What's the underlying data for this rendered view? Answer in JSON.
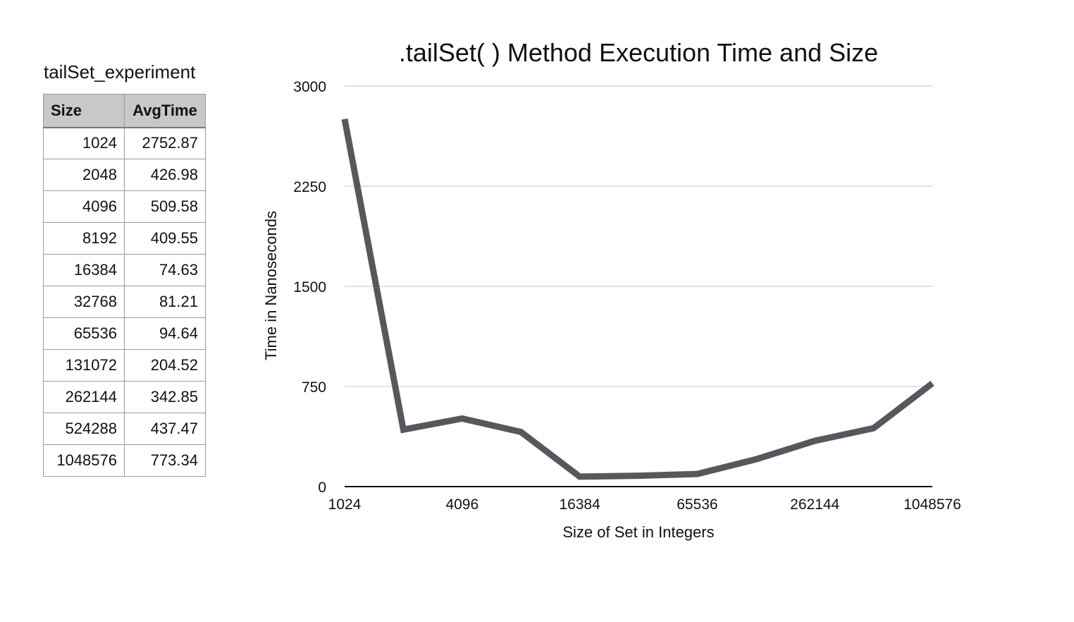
{
  "table": {
    "title": "tailSet_experiment",
    "headers": [
      "Size",
      "AvgTime"
    ],
    "rows": [
      [
        "1024",
        "2752.87"
      ],
      [
        "2048",
        "426.98"
      ],
      [
        "4096",
        "509.58"
      ],
      [
        "8192",
        "409.55"
      ],
      [
        "16384",
        "74.63"
      ],
      [
        "32768",
        "81.21"
      ],
      [
        "65536",
        "94.64"
      ],
      [
        "131072",
        "204.52"
      ],
      [
        "262144",
        "342.85"
      ],
      [
        "524288",
        "437.47"
      ],
      [
        "1048576",
        "773.34"
      ]
    ]
  },
  "chart_data": {
    "type": "line",
    "title": ".tailSet( ) Method Execution Time and Size",
    "xlabel": "Size of Set in Integers",
    "ylabel": "Time in Nanoseconds",
    "x": [
      1024,
      2048,
      4096,
      8192,
      16384,
      32768,
      65536,
      131072,
      262144,
      524288,
      1048576
    ],
    "x_scale": "log2",
    "x_tick_labels": [
      "1024",
      "4096",
      "16384",
      "65536",
      "262144",
      "1048576"
    ],
    "y_ticks": [
      0,
      750,
      1500,
      2250,
      3000
    ],
    "ylim": [
      0,
      3000
    ],
    "grid": true,
    "series": [
      {
        "values": [
          2752.87,
          426.98,
          509.58,
          409.55,
          74.63,
          81.21,
          94.64,
          204.52,
          342.85,
          437.47,
          773.34
        ],
        "color": "#55595e"
      }
    ]
  }
}
